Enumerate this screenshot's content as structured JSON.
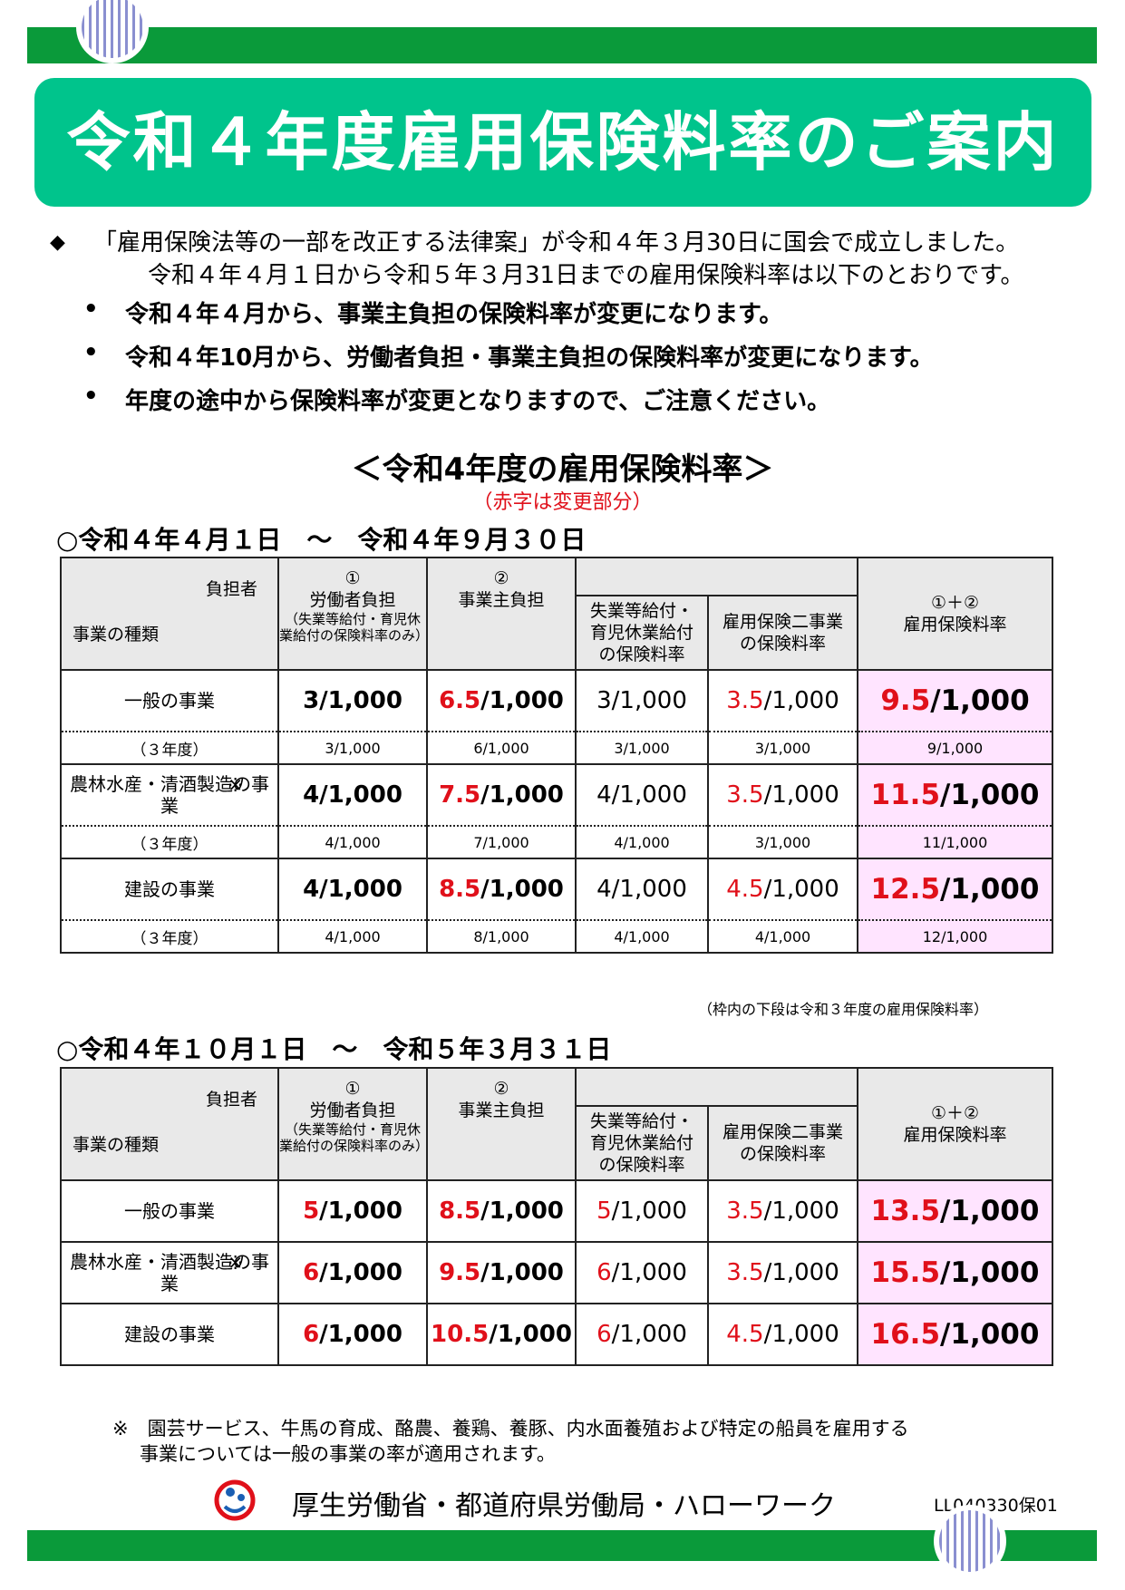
{
  "title": "令和４年度雇用保険料率のご案内",
  "intro": {
    "marker": "◆",
    "line1": "「雇用保険法等の一部を改正する法律案」が令和４年３月30日に国会で成立しました。",
    "line2": "令和４年４月１日から令和５年３月31日までの雇用保険料率は以下のとおりです。"
  },
  "bullets": [
    "令和４年４月から、事業主負担の保険料率が変更になります。",
    "令和４年10月から、労働者負担・事業主負担の保険料率が変更になります。",
    "年度の途中から保険料率が変更となりますので、ご注意ください。"
  ],
  "section_title": "＜令和4年度の雇用保険料率＞",
  "section_note": "（赤字は変更部分）",
  "header": {
    "burden": "負担者",
    "business_type": "事業の種類",
    "c1_num": "①",
    "c1_label": "労働者負担",
    "c1_note": "（失業等給付・育児休業給付の保険料率のみ）",
    "c2_num": "②",
    "c2_label": "事業主負担",
    "c3_label": "失業等給付・育児休業給付の保険料率",
    "c4_label": "雇用保険二事業の保険料率",
    "c5_num": "①＋②",
    "c5_label": "雇用保険料率"
  },
  "period1": {
    "label": "○令和４年４月１日　～　令和４年９月３０日",
    "rows": [
      {
        "type": "一般の事業",
        "kome": "",
        "worker": "3/1,000",
        "employer_red": "6.5",
        "employer": "/1,000",
        "unemp": "3/1,000",
        "two_red": "3.5",
        "two": "/1,000",
        "total_red": "9.5",
        "total": "/1,000",
        "prev_label": "（３年度）",
        "prev": [
          "3/1,000",
          "6/1,000",
          "3/1,000",
          "3/1,000",
          "9/1,000"
        ]
      },
      {
        "type": "農林水産・清酒製造の事業",
        "kome": "※",
        "worker": "4/1,000",
        "employer_red": "7.5",
        "employer": "/1,000",
        "unemp": "4/1,000",
        "two_red": "3.5",
        "two": "/1,000",
        "total_red": "11.5",
        "total": "/1,000",
        "prev_label": "（３年度）",
        "prev": [
          "4/1,000",
          "7/1,000",
          "4/1,000",
          "3/1,000",
          "11/1,000"
        ]
      },
      {
        "type": "建設の事業",
        "kome": "",
        "worker": "4/1,000",
        "employer_red": "8.5",
        "employer": "/1,000",
        "unemp": "4/1,000",
        "two_red": "4.5",
        "two": "/1,000",
        "total_red": "12.5",
        "total": "/1,000",
        "prev_label": "（３年度）",
        "prev": [
          "4/1,000",
          "8/1,000",
          "4/1,000",
          "4/1,000",
          "12/1,000"
        ]
      }
    ],
    "note": "（枠内の下段は令和３年度の雇用保険料率）"
  },
  "period2": {
    "label": "○令和４年１０月１日　～　令和５年３月３１日",
    "rows": [
      {
        "type": "一般の事業",
        "kome": "",
        "worker_red": "5",
        "worker": "/1,000",
        "employer_red": "8.5",
        "employer": "/1,000",
        "unemp_red": "5",
        "unemp": "/1,000",
        "two_red": "3.5",
        "two": "/1,000",
        "total_red": "13.5",
        "total": "/1,000"
      },
      {
        "type": "農林水産・清酒製造の事業",
        "kome": "※",
        "worker_red": "6",
        "worker": "/1,000",
        "employer_red": "9.5",
        "employer": "/1,000",
        "unemp_red": "6",
        "unemp": "/1,000",
        "two_red": "3.5",
        "two": "/1,000",
        "total_red": "15.5",
        "total": "/1,000"
      },
      {
        "type": "建設の事業",
        "kome": "",
        "worker_red": "6",
        "worker": "/1,000",
        "employer_red": "10.5",
        "employer": "/1,000",
        "unemp_red": "6",
        "unemp": "/1,000",
        "two_red": "4.5",
        "two": "/1,000",
        "total_red": "16.5",
        "total": "/1,000"
      }
    ]
  },
  "footnote": {
    "line1": "※　園芸サービス、牛馬の育成、酪農、養鶏、養豚、内水面養殖および特定の船員を雇用する",
    "line2": "事業については一般の事業の率が適用されます。"
  },
  "footer": {
    "org": "厚生労働省・都道府県労働局・ハローワーク",
    "code": "LL040330保01"
  },
  "colors": {
    "band": "#0a9a3a",
    "title_bg": "#00c48c",
    "red": "#e0101a",
    "total_bg": "#ffe4ff"
  }
}
